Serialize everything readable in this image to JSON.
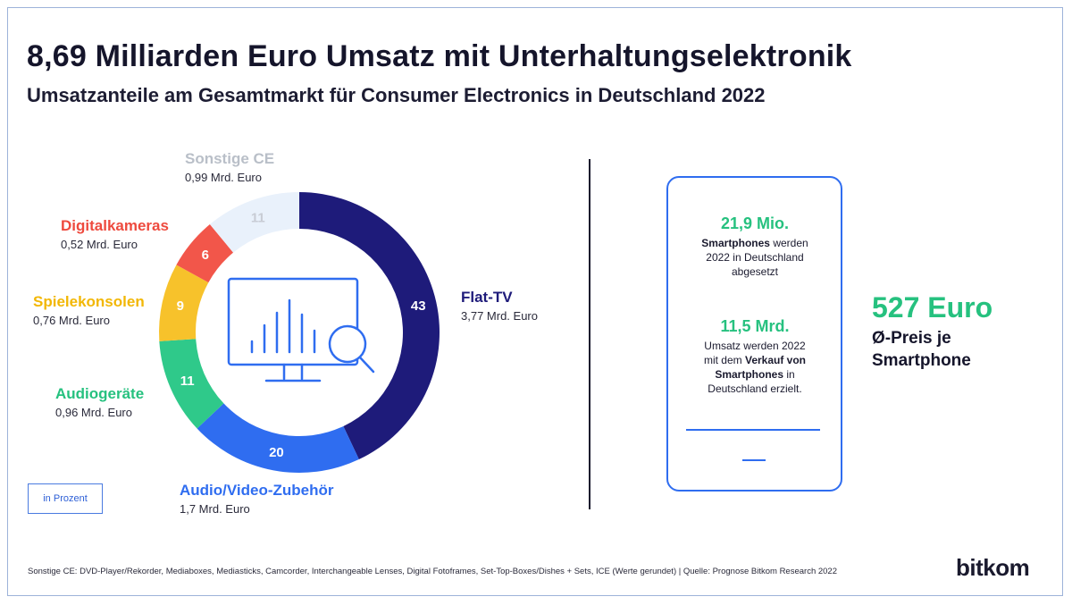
{
  "header": {
    "title": "8,69 Milliarden Euro Umsatz mit Unterhaltungselektronik",
    "subtitle": "Umsatzanteile am Gesamtmarkt für Consumer Electronics in Deutschland 2022"
  },
  "chart_data": {
    "type": "pie",
    "unit_note": "in Prozent",
    "center_icon": "monitor-chart-magnifier-icon",
    "slices": [
      {
        "name": "Flat-TV",
        "value": 43,
        "label": "43",
        "detail": "3,77 Mrd. Euro",
        "color": "#1e1b7a",
        "label_color": "#1e1b7a",
        "text_color": "#ffffff"
      },
      {
        "name": "Audio/Video-Zubehör",
        "value": 20,
        "label": "20",
        "detail": "1,7 Mrd. Euro",
        "color": "#2f6df0",
        "label_color": "#2f6df0",
        "text_color": "#ffffff"
      },
      {
        "name": "Audiogeräte",
        "value": 11,
        "label": "11",
        "detail": "0,96 Mrd. Euro",
        "color": "#2fc98a",
        "label_color": "#26c17f",
        "text_color": "#ffffff"
      },
      {
        "name": "Spielekonsolen",
        "value": 9,
        "label": "9",
        "detail": "0,76 Mrd. Euro",
        "color": "#f7c22b",
        "label_color": "#f2b705",
        "text_color": "#ffffff"
      },
      {
        "name": "Digitalkameras",
        "value": 6,
        "label": "6",
        "detail": "0,52 Mrd. Euro",
        "color": "#f2564a",
        "label_color": "#ee4a3e",
        "text_color": "#ffffff"
      },
      {
        "name": "Sonstige CE",
        "value": 11,
        "label": "11",
        "detail": "0,99 Mrd. Euro",
        "color": "#e9f1fb",
        "label_color": "#b9bfc8",
        "text_color": "#c8ccd4"
      }
    ]
  },
  "smartphone": {
    "stat1_big": "21,9 Mio.",
    "stat1_bold": "Smartphones",
    "stat1_rest": " werden",
    "stat1_line2": "2022 in Deutschland",
    "stat1_line3": "abgesetzt",
    "stat2_big": "11,5 Mrd.",
    "stat2_line1": "Umsatz werden 2022",
    "stat2_line2a": "mit dem ",
    "stat2_line2b": "Verkauf von",
    "stat2_line3": "Smartphones",
    "stat2_line3b": " in",
    "stat2_line4": "Deutschland erzielt.",
    "price": "527 Euro",
    "price_label_1": "Ø-Preis je",
    "price_label_2": "Smartphone"
  },
  "footer": {
    "note": "Sonstige CE: DVD-Player/Rekorder, Mediaboxes, Mediasticks, Camcorder, Interchangeable Lenses, Digital Fotoframes, Set-Top-Boxes/Dishes + Sets, ICE (Werte gerundet) | Quelle: Prognose Bitkom Research 2022",
    "logo": "bitkom"
  },
  "colors": {
    "accent_blue": "#2f6df0",
    "accent_green": "#26c17f",
    "navy": "#1e1b7a"
  }
}
